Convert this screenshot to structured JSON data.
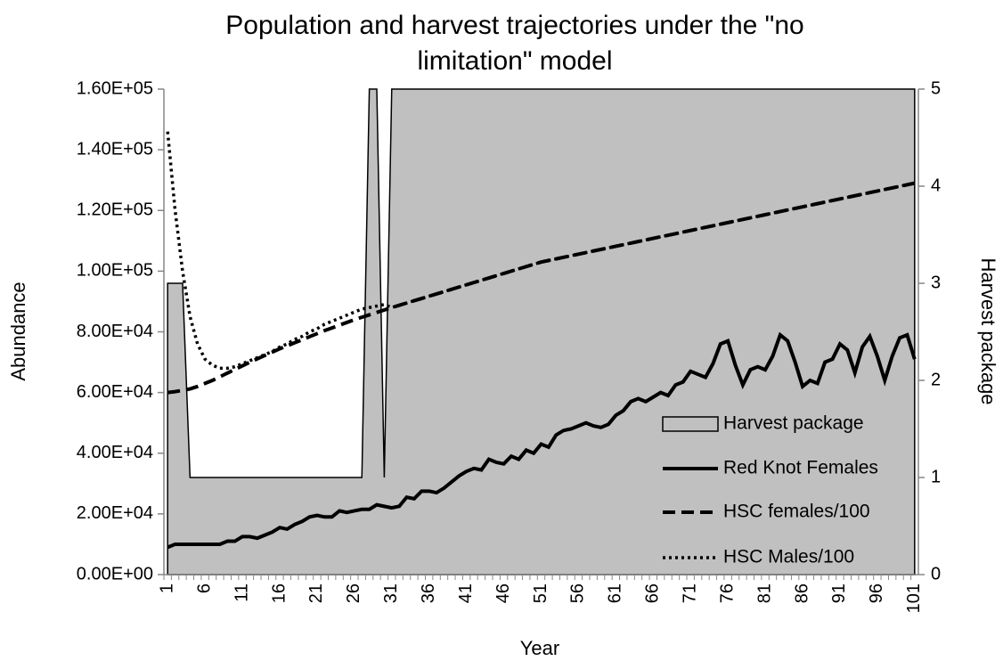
{
  "chart_data": {
    "type": "line",
    "title": [
      "Population and harvest trajectories under the \"no",
      "limitation\" model"
    ],
    "x_label": "Year",
    "y_label": "Abundance",
    "y2_label": "Harvest package",
    "categories": [
      "1",
      null,
      null,
      null,
      null,
      "6",
      null,
      null,
      null,
      null,
      "11",
      null,
      null,
      null,
      null,
      "16",
      null,
      null,
      null,
      null,
      "21",
      null,
      null,
      null,
      null,
      "26",
      null,
      null,
      null,
      null,
      "31",
      null,
      null,
      null,
      null,
      "36",
      null,
      null,
      null,
      null,
      "41",
      null,
      null,
      null,
      null,
      "46",
      null,
      null,
      null,
      null,
      "51",
      null,
      null,
      null,
      null,
      "56",
      null,
      null,
      null,
      null,
      "61",
      null,
      null,
      null,
      null,
      "66",
      null,
      null,
      null,
      null,
      "71",
      null,
      null,
      null,
      null,
      "76",
      null,
      null,
      null,
      null,
      "81",
      null,
      null,
      null,
      null,
      "86",
      null,
      null,
      null,
      null,
      "91",
      null,
      null,
      null,
      null,
      "96",
      null,
      null,
      null,
      null,
      "101"
    ],
    "ylim": [
      0,
      160000
    ],
    "yticks": [
      {
        "value": 0,
        "label": "0.00E+00"
      },
      {
        "value": 20000,
        "label": "2.00E+04"
      },
      {
        "value": 40000,
        "label": "4.00E+04"
      },
      {
        "value": 60000,
        "label": "6.00E+04"
      },
      {
        "value": 80000,
        "label": "8.00E+04"
      },
      {
        "value": 100000,
        "label": "1.00E+05"
      },
      {
        "value": 120000,
        "label": "1.20E+05"
      },
      {
        "value": 140000,
        "label": "1.40E+05"
      },
      {
        "value": 160000,
        "label": "1.60E+05"
      }
    ],
    "y2lim": [
      0,
      5
    ],
    "y2ticks": [
      0,
      1,
      2,
      3,
      4,
      5
    ],
    "legend": "lower right",
    "series": [
      {
        "name": "Harvest package",
        "kind": "area",
        "axis": "y2",
        "color": "#c0c0c0",
        "values": [
          3,
          3,
          3,
          1,
          1,
          1,
          1,
          1,
          1,
          1,
          1,
          1,
          1,
          1,
          1,
          1,
          1,
          1,
          1,
          1,
          1,
          1,
          1,
          1,
          1,
          1,
          1,
          5,
          5,
          1,
          5,
          5,
          5,
          5,
          5,
          5,
          5,
          5,
          5,
          5,
          5,
          5,
          5,
          5,
          5,
          5,
          5,
          5,
          5,
          5,
          5,
          5,
          5,
          5,
          5,
          5,
          5,
          5,
          5,
          5,
          5,
          5,
          5,
          5,
          5,
          5,
          5,
          5,
          5,
          5,
          5,
          5,
          5,
          5,
          5,
          5,
          5,
          5,
          5,
          5,
          5,
          5,
          5,
          5,
          5,
          5,
          5,
          5,
          5,
          5,
          5,
          5,
          5,
          5,
          5,
          5,
          5,
          5,
          5,
          5,
          5
        ]
      },
      {
        "name": "Red Knot Females",
        "style": "solid",
        "color": "#000000",
        "values": [
          9000,
          10000,
          10000,
          10000,
          10000,
          10000,
          10000,
          10000,
          11000,
          11000,
          12500,
          12500,
          12000,
          13000,
          14000,
          15500,
          15000,
          16500,
          17500,
          19000,
          19500,
          19000,
          19000,
          21000,
          20500,
          21000,
          21500,
          21500,
          23000,
          22500,
          22000,
          22500,
          25500,
          25000,
          27500,
          27500,
          27000,
          28500,
          30500,
          32500,
          34000,
          35000,
          34500,
          38000,
          37000,
          36500,
          39000,
          38000,
          41000,
          40000,
          43000,
          42000,
          46000,
          47500,
          48000,
          49000,
          50000,
          49000,
          48500,
          49500,
          52500,
          54000,
          57000,
          58000,
          57000,
          58500,
          60000,
          59000,
          62500,
          63500,
          67000,
          66000,
          65000,
          69500,
          76000,
          77000,
          69000,
          62500,
          67500,
          68500,
          67500,
          72000,
          79000,
          77000,
          70000,
          62000,
          64000,
          63000,
          70000,
          71000,
          76000,
          74000,
          66500,
          75000,
          78500,
          72000,
          64000,
          72000,
          78000,
          79000,
          71000
        ]
      },
      {
        "name": "HSC females/100",
        "style": "dashed",
        "color": "#000000",
        "values": [
          60000,
          60300,
          60700,
          61200,
          62000,
          63000,
          64000,
          65200,
          66400,
          67600,
          68800,
          70000,
          71100,
          72200,
          73300,
          74400,
          75400,
          76400,
          77400,
          78400,
          79400,
          80400,
          81300,
          82200,
          83100,
          84000,
          84800,
          85600,
          86400,
          87200,
          88000,
          88750,
          89500,
          90250,
          91000,
          91750,
          92500,
          93250,
          94000,
          94750,
          95500,
          96250,
          97000,
          97750,
          98500,
          99250,
          100000,
          100750,
          101500,
          102250,
          103000,
          103520,
          104040,
          104560,
          105080,
          105600,
          106120,
          106640,
          107160,
          107680,
          108200,
          108720,
          109240,
          109760,
          110280,
          110800,
          111320,
          111840,
          112360,
          112880,
          113400,
          113920,
          114440,
          114960,
          115480,
          116000,
          116520,
          117040,
          117560,
          118080,
          118600,
          119120,
          119640,
          120160,
          120680,
          121200,
          121720,
          122240,
          122760,
          123280,
          123800,
          124320,
          124840,
          125360,
          125880,
          126400,
          126920,
          127440,
          127960,
          128480,
          129000
        ]
      },
      {
        "name": "HSC Males/100",
        "style": "dotted",
        "color": "#000000",
        "values": [
          146000,
          120000,
          100000,
          85000,
          76000,
          71000,
          69000,
          68000,
          68000,
          68500,
          69500,
          70500,
          71500,
          72500,
          73500,
          75000,
          76000,
          77500,
          78500,
          80000,
          81000,
          82500,
          83500,
          84500,
          85500,
          86500,
          87500,
          88000,
          88500,
          89000,
          88000,
          88750,
          89500,
          90250,
          91000,
          91750,
          92500,
          93250,
          94000,
          94750,
          95500,
          96250,
          97000,
          97750,
          98500,
          99250,
          100000,
          100750,
          101500,
          102250,
          103000,
          103520,
          104040,
          104560,
          105080,
          105600,
          106120,
          106640,
          107160,
          107680,
          108200,
          108720,
          109240,
          109760,
          110280,
          110800,
          111320,
          111840,
          112360,
          112880,
          113400,
          113920,
          114440,
          114960,
          115480,
          116000,
          116520,
          117040,
          117560,
          118080,
          118600,
          119120,
          119640,
          120160,
          120680,
          121200,
          121720,
          122240,
          122760,
          123280,
          123800,
          124320,
          124840,
          125360,
          125880,
          126400,
          126920,
          127440,
          127960,
          128480,
          129000
        ]
      }
    ]
  }
}
